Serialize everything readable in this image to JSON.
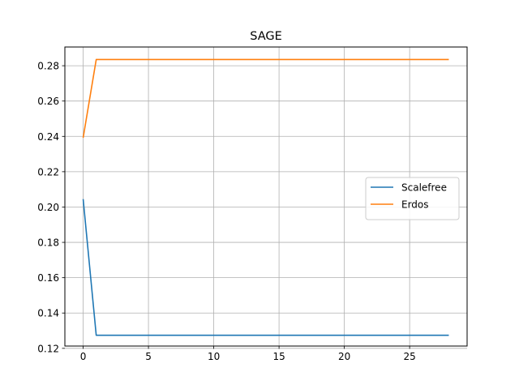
{
  "chart_data": {
    "type": "line",
    "title": "SAGE",
    "xlabel": "",
    "ylabel": "",
    "xlim": [
      -1.4,
      29.4
    ],
    "ylim": [
      0.1213,
      0.2906
    ],
    "xticks": [
      0,
      5,
      10,
      15,
      20,
      25
    ],
    "yticks": [
      0.12,
      0.14,
      0.16,
      0.18,
      0.2,
      0.22,
      0.24,
      0.26,
      0.28
    ],
    "ytick_labels": [
      "0.12",
      "0.14",
      "0.16",
      "0.18",
      "0.20",
      "0.22",
      "0.24",
      "0.26",
      "0.28"
    ],
    "grid": true,
    "legend_position": "center-right",
    "x": [
      0,
      1,
      2,
      3,
      4,
      5,
      6,
      7,
      8,
      9,
      10,
      11,
      12,
      13,
      14,
      15,
      16,
      17,
      18,
      19,
      20,
      21,
      22,
      23,
      24,
      25,
      26,
      27,
      28
    ],
    "series": [
      {
        "name": "Scalefree",
        "color": "#1f77b4",
        "values": [
          0.2045,
          0.1274,
          0.1274,
          0.1274,
          0.1274,
          0.1274,
          0.1274,
          0.1274,
          0.1274,
          0.1274,
          0.1274,
          0.1274,
          0.1274,
          0.1274,
          0.1274,
          0.1274,
          0.1274,
          0.1274,
          0.1274,
          0.1274,
          0.1274,
          0.1274,
          0.1274,
          0.1274,
          0.1274,
          0.1274,
          0.1274,
          0.1274,
          0.1274
        ]
      },
      {
        "name": "Erdos",
        "color": "#ff7f0e",
        "values": [
          0.2392,
          0.2835,
          0.2835,
          0.2835,
          0.2835,
          0.2835,
          0.2835,
          0.2835,
          0.2835,
          0.2835,
          0.2835,
          0.2835,
          0.2835,
          0.2835,
          0.2835,
          0.2835,
          0.2835,
          0.2835,
          0.2835,
          0.2835,
          0.2835,
          0.2835,
          0.2835,
          0.2835,
          0.2835,
          0.2835,
          0.2835,
          0.2835,
          0.2835
        ]
      }
    ]
  }
}
